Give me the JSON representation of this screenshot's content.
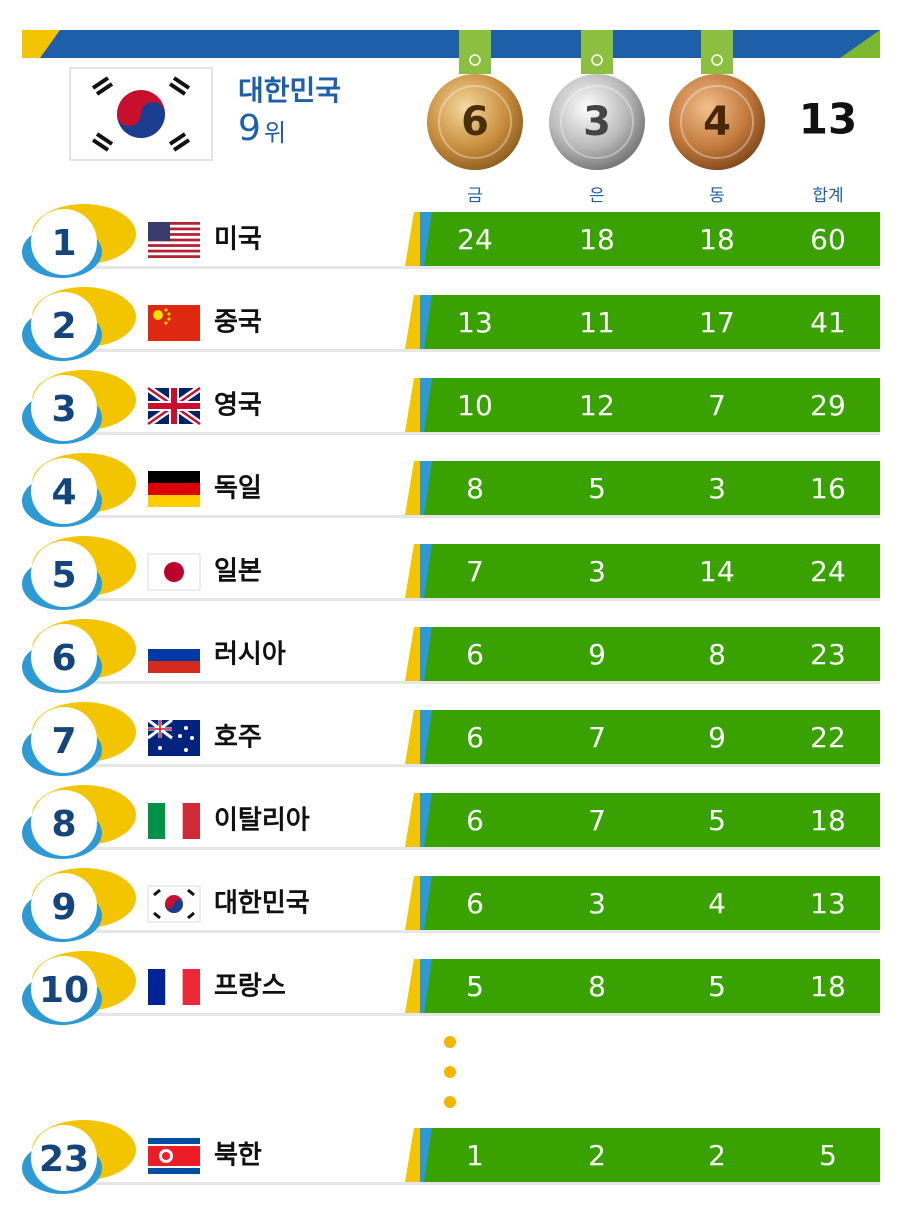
{
  "header": {
    "country": "대한민국",
    "rank_number": "9",
    "rank_unit": "위",
    "medals": {
      "gold": 6,
      "silver": 3,
      "bronze": 4
    },
    "total": 13
  },
  "columns": [
    "금",
    "은",
    "동",
    "합계"
  ],
  "rows": [
    {
      "rank": 1,
      "country": "미국",
      "gold": 24,
      "silver": 18,
      "bronze": 18,
      "total": 60
    },
    {
      "rank": 2,
      "country": "중국",
      "gold": 13,
      "silver": 11,
      "bronze": 17,
      "total": 41
    },
    {
      "rank": 3,
      "country": "영국",
      "gold": 10,
      "silver": 12,
      "bronze": 7,
      "total": 29
    },
    {
      "rank": 4,
      "country": "독일",
      "gold": 8,
      "silver": 5,
      "bronze": 3,
      "total": 16
    },
    {
      "rank": 5,
      "country": "일본",
      "gold": 7,
      "silver": 3,
      "bronze": 14,
      "total": 24
    },
    {
      "rank": 6,
      "country": "러시아",
      "gold": 6,
      "silver": 9,
      "bronze": 8,
      "total": 23
    },
    {
      "rank": 7,
      "country": "호주",
      "gold": 6,
      "silver": 7,
      "bronze": 9,
      "total": 22
    },
    {
      "rank": 8,
      "country": "이탈리아",
      "gold": 6,
      "silver": 7,
      "bronze": 5,
      "total": 18
    },
    {
      "rank": 9,
      "country": "대한민국",
      "gold": 6,
      "silver": 3,
      "bronze": 4,
      "total": 13
    },
    {
      "rank": 10,
      "country": "프랑스",
      "gold": 5,
      "silver": 8,
      "bronze": 5,
      "total": 18
    },
    {
      "rank": 23,
      "country": "북한",
      "gold": 1,
      "silver": 2,
      "bronze": 2,
      "total": 5
    }
  ]
}
